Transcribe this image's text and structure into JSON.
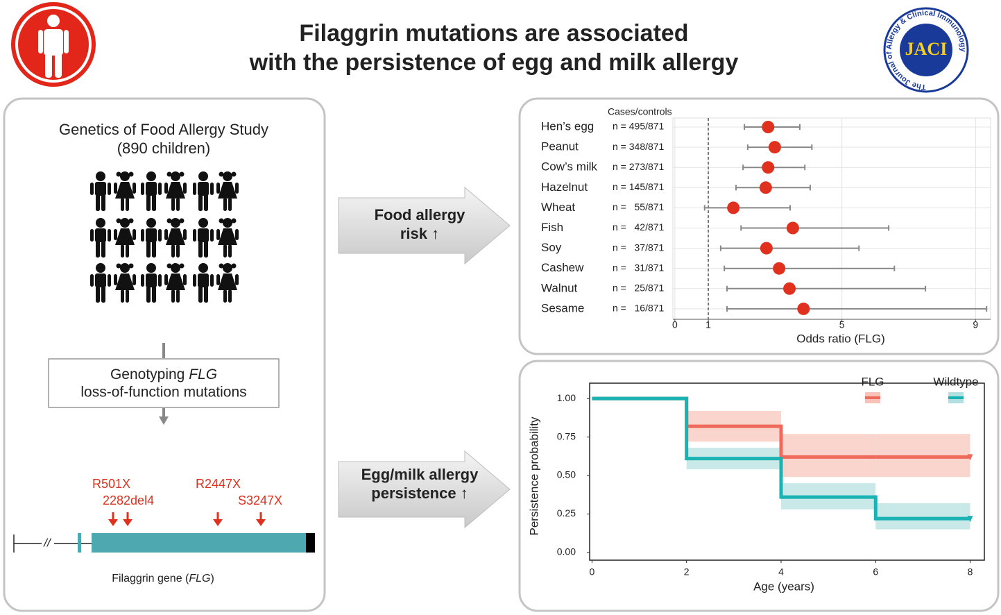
{
  "header": {
    "title_line1": "Filaggrin mutations are associated",
    "title_line2": "with the persistence of egg and milk allergy",
    "journal_logo": "JACI",
    "journal_ring": "The Journal of Allergy & Clinical Immunology"
  },
  "study": {
    "title": "Genetics of Food Allergy Study",
    "subtitle": "(890 children)",
    "genotyping_prefix": "Genotyping ",
    "genotyping_gene": "FLG",
    "genotyping_line2": "loss-of-function mutations",
    "mutations": [
      "R501X",
      "2282del4",
      "R2447X",
      "S3247X"
    ],
    "gene_label_prefix": "Filaggrin gene (",
    "gene_label_gene": "FLG",
    "gene_label_suffix": ")"
  },
  "arrows": [
    {
      "lines": [
        "Food allergy",
        "risk ↑"
      ]
    },
    {
      "lines": [
        "Egg/milk allergy",
        "persistence ↑"
      ]
    }
  ],
  "chart_data": [
    {
      "type": "forest",
      "column_header": "Cases/controls",
      "xlabel": "Odds ratio (FLG)",
      "categories": [
        "Hen’s egg",
        "Peanut",
        "Cow’s milk",
        "Hazelnut",
        "Wheat",
        "Fish",
        "Soy",
        "Cashew",
        "Walnut",
        "Sesame"
      ],
      "n_labels": [
        "n = 495/871",
        "n = 348/871",
        "n = 273/871",
        "n = 145/871",
        "n =   55/871",
        "n =   42/871",
        "n =   37/871",
        "n =   31/871",
        "n =   25/871",
        "n =   16/871"
      ],
      "values": [
        2.79,
        2.99,
        2.79,
        2.72,
        1.75,
        3.53,
        2.74,
        3.12,
        3.43,
        3.85
      ],
      "ci_low": [
        2.08,
        2.18,
        2.04,
        1.83,
        0.89,
        1.98,
        1.37,
        1.48,
        1.56,
        1.56
      ],
      "ci_high": [
        3.74,
        4.1,
        3.89,
        4.05,
        3.45,
        6.4,
        5.51,
        6.57,
        7.5,
        9.33
      ],
      "color": "#e0301e",
      "ci_color": "#888888",
      "ref_line": 1,
      "xlim": [
        -0.06,
        9.45
      ],
      "xticks": [
        0,
        1,
        5,
        9
      ],
      "grid": true
    },
    {
      "type": "step",
      "xlabel": "Age (years)",
      "ylabel": "Persistence probability",
      "x": [
        0,
        2,
        4,
        6,
        8
      ],
      "series": [
        {
          "name": "FLG",
          "color": "#ef6a5a",
          "band_color": "#f7c3b9",
          "values": [
            1.0,
            0.82,
            0.62,
            0.62,
            0.62
          ],
          "lower": [
            null,
            0.72,
            0.49,
            0.49,
            null
          ],
          "upper": [
            null,
            0.92,
            0.77,
            0.77,
            null
          ]
        },
        {
          "name": "Wildtype",
          "color": "#1ab2b3",
          "band_color": "#b2dfe0",
          "values": [
            1.0,
            0.61,
            0.36,
            0.22,
            0.22
          ],
          "lower": [
            null,
            0.54,
            0.28,
            0.15,
            null
          ],
          "upper": [
            null,
            0.68,
            0.45,
            0.32,
            null
          ]
        }
      ],
      "xlim": [
        -0.05,
        8.3
      ],
      "ylim": [
        -0.05,
        1.1
      ],
      "xticks": [
        0,
        2,
        4,
        6,
        8
      ],
      "yticks": [
        {
          "value": 0,
          "label": "0.00"
        },
        {
          "value": 0.25,
          "label": "0.25"
        },
        {
          "value": 0.5,
          "label": "0.50"
        },
        {
          "value": 0.75,
          "label": "0.75"
        },
        {
          "value": 1,
          "label": "1.00"
        }
      ],
      "legend": "top-right"
    }
  ]
}
